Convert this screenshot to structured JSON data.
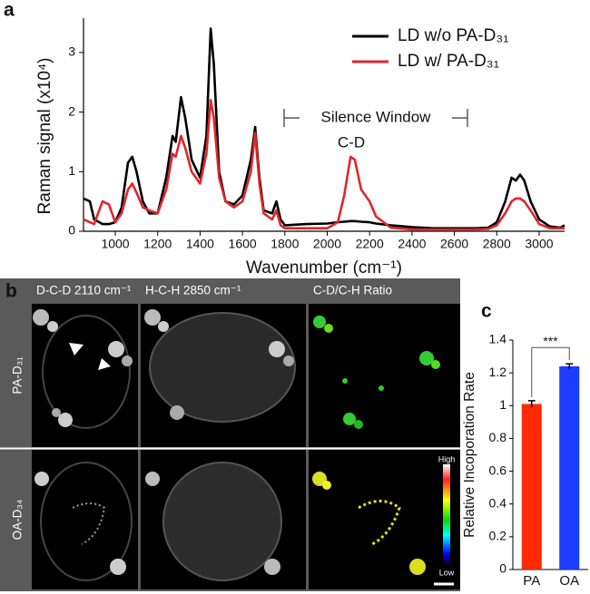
{
  "panel_labels": [
    "a",
    "b",
    "c"
  ],
  "chart_data": [
    {
      "type": "line",
      "y_label": "Raman signal (x10⁴)",
      "x_label": "Wavenumber (cm⁻¹)",
      "annotations": [
        "Silence Window",
        "C-D"
      ],
      "legend": "upper right",
      "xlim": [
        850,
        3120
      ],
      "ylim": [
        0,
        3.5
      ],
      "xticks": [
        1000,
        1200,
        1400,
        1600,
        1800,
        2000,
        2200,
        2400,
        2600,
        2800,
        3000
      ],
      "yticks": [
        0,
        1,
        2,
        3
      ],
      "x": [
        850,
        880,
        900,
        940,
        970,
        1000,
        1030,
        1060,
        1080,
        1100,
        1130,
        1160,
        1200,
        1240,
        1270,
        1285,
        1310,
        1330,
        1360,
        1400,
        1430,
        1450,
        1465,
        1490,
        1520,
        1560,
        1600,
        1640,
        1660,
        1680,
        1700,
        1740,
        1760,
        1780,
        1800,
        1900,
        2000,
        2050,
        2080,
        2110,
        2130,
        2160,
        2200,
        2230,
        2300,
        2400,
        2500,
        2600,
        2700,
        2760,
        2800,
        2840,
        2870,
        2890,
        2910,
        2930,
        2960,
        3000,
        3050,
        3100,
        3120
      ],
      "series": [
        {
          "name": "LD w/o PA-D₃₁",
          "color": "#000000",
          "values": [
            0.55,
            0.5,
            0.2,
            0.12,
            0.12,
            0.15,
            0.4,
            1.15,
            1.25,
            1.0,
            0.5,
            0.3,
            0.3,
            0.9,
            1.6,
            1.5,
            2.25,
            1.9,
            1.2,
            0.9,
            1.6,
            3.4,
            2.8,
            1.0,
            0.5,
            0.45,
            0.6,
            1.2,
            1.75,
            0.9,
            0.35,
            0.3,
            0.5,
            0.2,
            0.1,
            0.12,
            0.13,
            0.15,
            0.16,
            0.17,
            0.17,
            0.16,
            0.15,
            0.13,
            0.1,
            0.07,
            0.05,
            0.05,
            0.05,
            0.06,
            0.15,
            0.5,
            0.9,
            0.85,
            0.95,
            0.85,
            0.5,
            0.2,
            0.08,
            0.06,
            0.1
          ]
        },
        {
          "name": "LD w/ PA-D₃₁",
          "color": "#e0262b",
          "values": [
            0.2,
            0.15,
            0.12,
            0.5,
            0.45,
            0.15,
            0.3,
            0.7,
            0.8,
            0.65,
            0.4,
            0.35,
            0.3,
            0.7,
            1.3,
            1.25,
            1.6,
            1.4,
            1.0,
            0.8,
            1.3,
            2.2,
            1.9,
            0.9,
            0.5,
            0.4,
            0.5,
            1.0,
            1.65,
            0.8,
            0.3,
            0.2,
            0.35,
            0.1,
            0.05,
            0.05,
            0.05,
            0.15,
            0.6,
            1.25,
            1.2,
            0.7,
            0.5,
            0.25,
            0.06,
            0.03,
            0.03,
            0.03,
            0.03,
            0.04,
            0.1,
            0.3,
            0.5,
            0.55,
            0.55,
            0.5,
            0.35,
            0.12,
            0.05,
            0.05,
            0.05
          ]
        }
      ]
    },
    {
      "type": "bar",
      "y_label": "Relative Incoporation Rate",
      "categories": [
        "PA",
        "OA"
      ],
      "values": [
        1.01,
        1.24
      ],
      "errors": [
        0.02,
        0.015
      ],
      "colors": [
        "#ff2a00",
        "#1c3cff"
      ],
      "significance": "***",
      "ylim": [
        0,
        1.4
      ],
      "yticks": [
        0,
        0.2,
        0.4,
        0.6,
        0.8,
        1,
        1.2,
        1.4
      ]
    }
  ],
  "image_panel": {
    "column_headers": [
      "D-C-D 2110 cm⁻¹",
      "H-C-H 2850 cm⁻¹",
      "C-D/C-H Ratio"
    ],
    "row_labels": [
      "PA-D₃₁",
      "OA-D₃₄"
    ],
    "colorbar": {
      "high": "High",
      "low": "Low"
    }
  }
}
